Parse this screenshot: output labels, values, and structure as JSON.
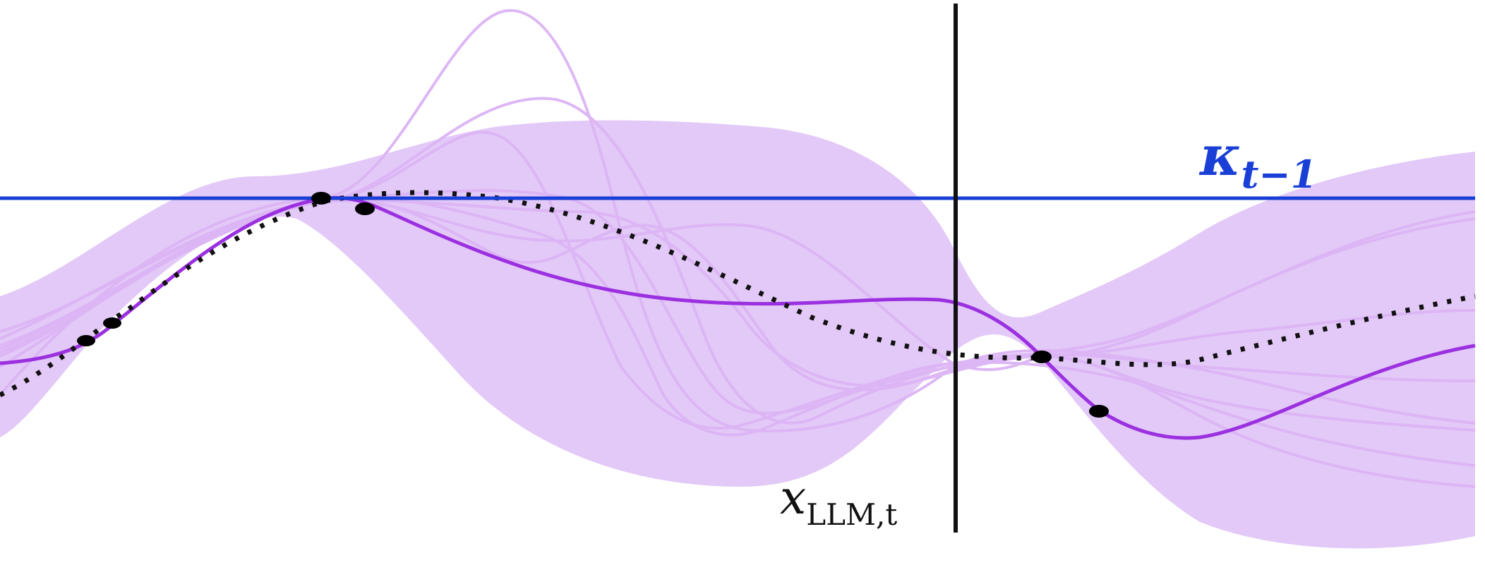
{
  "labels": {
    "threshold": "κ",
    "threshold_sub": "t−1",
    "marker_main": "x",
    "marker_sub": "LLM,t"
  },
  "colors": {
    "band": "#e3c9f7",
    "samples": "#dcb4f5",
    "posterior_mean": "#9b30e0",
    "prior_mean": "#111111",
    "threshold_line": "#1a3fd6",
    "marker_line": "#111111",
    "points": "#000000"
  }
}
